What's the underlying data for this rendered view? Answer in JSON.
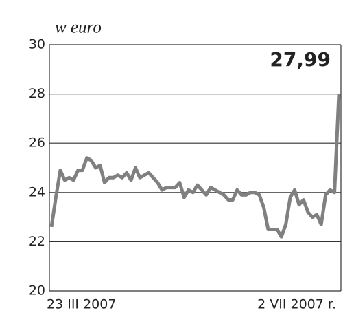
{
  "chart_data": {
    "type": "line",
    "title": "w euro",
    "annotation": "27,99",
    "categories": [
      "23 III 2007",
      null,
      null,
      null,
      null,
      null,
      null,
      null,
      null,
      null,
      null,
      null,
      null,
      null,
      null,
      null,
      null,
      null,
      null,
      null,
      null,
      null,
      null,
      null,
      null,
      null,
      null,
      null,
      null,
      null,
      null,
      null,
      null,
      null,
      null,
      null,
      null,
      null,
      null,
      null,
      null,
      null,
      null,
      null,
      null,
      null,
      null,
      null,
      null,
      null,
      null,
      null,
      null,
      null,
      null,
      null,
      null,
      null,
      null,
      null,
      null,
      null,
      null,
      null,
      null,
      "2 VII 2007 r."
    ],
    "values": [
      22.6,
      23.8,
      24.9,
      24.5,
      24.6,
      24.5,
      24.9,
      24.9,
      25.4,
      25.3,
      25.0,
      25.1,
      24.4,
      24.6,
      24.6,
      24.7,
      24.6,
      24.8,
      24.5,
      25.0,
      24.6,
      24.7,
      24.8,
      24.6,
      24.4,
      24.1,
      24.2,
      24.2,
      24.2,
      24.4,
      23.8,
      24.1,
      24.0,
      24.3,
      24.1,
      23.9,
      24.2,
      24.1,
      24.0,
      23.9,
      23.7,
      23.7,
      24.1,
      23.9,
      23.9,
      24.0,
      24.0,
      23.9,
      23.4,
      22.5,
      22.5,
      22.5,
      22.2,
      22.7,
      23.8,
      24.1,
      23.5,
      23.7,
      23.2,
      23.0,
      23.1,
      22.7,
      23.9,
      24.1,
      24.0,
      27.99
    ],
    "color": "#808080",
    "ylim": [
      20,
      30
    ],
    "yticks": [
      20,
      22,
      24,
      26,
      28,
      30
    ],
    "grid": true
  }
}
